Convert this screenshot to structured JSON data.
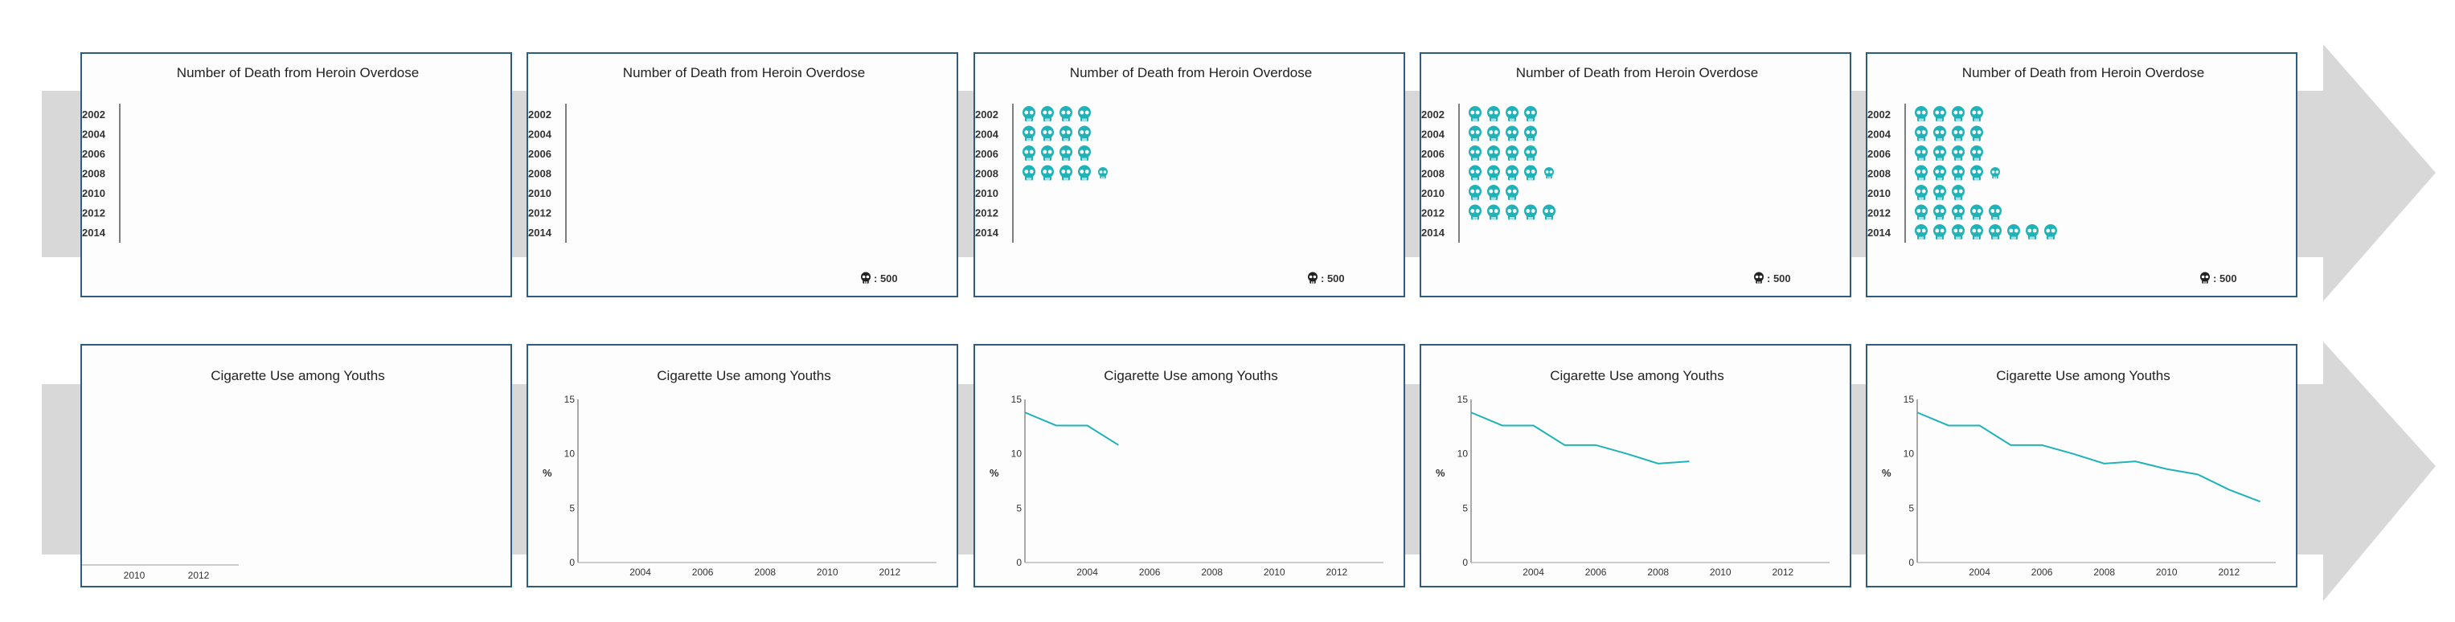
{
  "colors": {
    "accent": "#1fb3b8",
    "frame": "#2f5c83",
    "arrow": "#d8d8d8",
    "axis": "#555555"
  },
  "chart_data": [
    {
      "type": "bar",
      "row": "heroin",
      "title": "Number of Death from Heroin Overdose",
      "icon": "skull-icon",
      "unit_label": ": 500",
      "categories": [
        "2002",
        "2004",
        "2006",
        "2008",
        "2010",
        "2012",
        "2014"
      ],
      "panels": [
        {
          "visible_years": 0,
          "show_unit": false
        },
        {
          "visible_years": 0,
          "show_unit": true
        },
        {
          "visible_years": 4,
          "show_unit": true
        },
        {
          "visible_years": 6,
          "show_unit": true
        },
        {
          "visible_years": 7,
          "show_unit": true
        }
      ],
      "values": [
        2000,
        2000,
        2000,
        2250,
        1500,
        2500,
        4000
      ]
    },
    {
      "type": "line",
      "row": "cigarette",
      "title": "Cigarette Use among Youths",
      "ylabel": "%",
      "yticks": [
        "0",
        "5",
        "10",
        "15"
      ],
      "ylim": [
        0,
        15
      ],
      "xlim": [
        2002,
        2013.5
      ],
      "xticks": [
        "2004",
        "2006",
        "2008",
        "2010",
        "2012"
      ],
      "x": [
        2002,
        2003,
        2004,
        2005,
        2006,
        2007,
        2008,
        2009,
        2010,
        2011,
        2012,
        2013
      ],
      "values": [
        13.8,
        12.6,
        12.6,
        10.8,
        10.8,
        10,
        9.1,
        9.3,
        8.6,
        8.1,
        6.7,
        5.6
      ],
      "panels": [
        {
          "visible_points": 0,
          "show_yaxis": false,
          "xticks": [
            "2010",
            "2012"
          ]
        },
        {
          "visible_points": 0,
          "show_yaxis": true
        },
        {
          "visible_points": 4,
          "show_yaxis": true
        },
        {
          "visible_points": 8,
          "show_yaxis": true
        },
        {
          "visible_points": 12,
          "show_yaxis": true
        }
      ]
    }
  ]
}
